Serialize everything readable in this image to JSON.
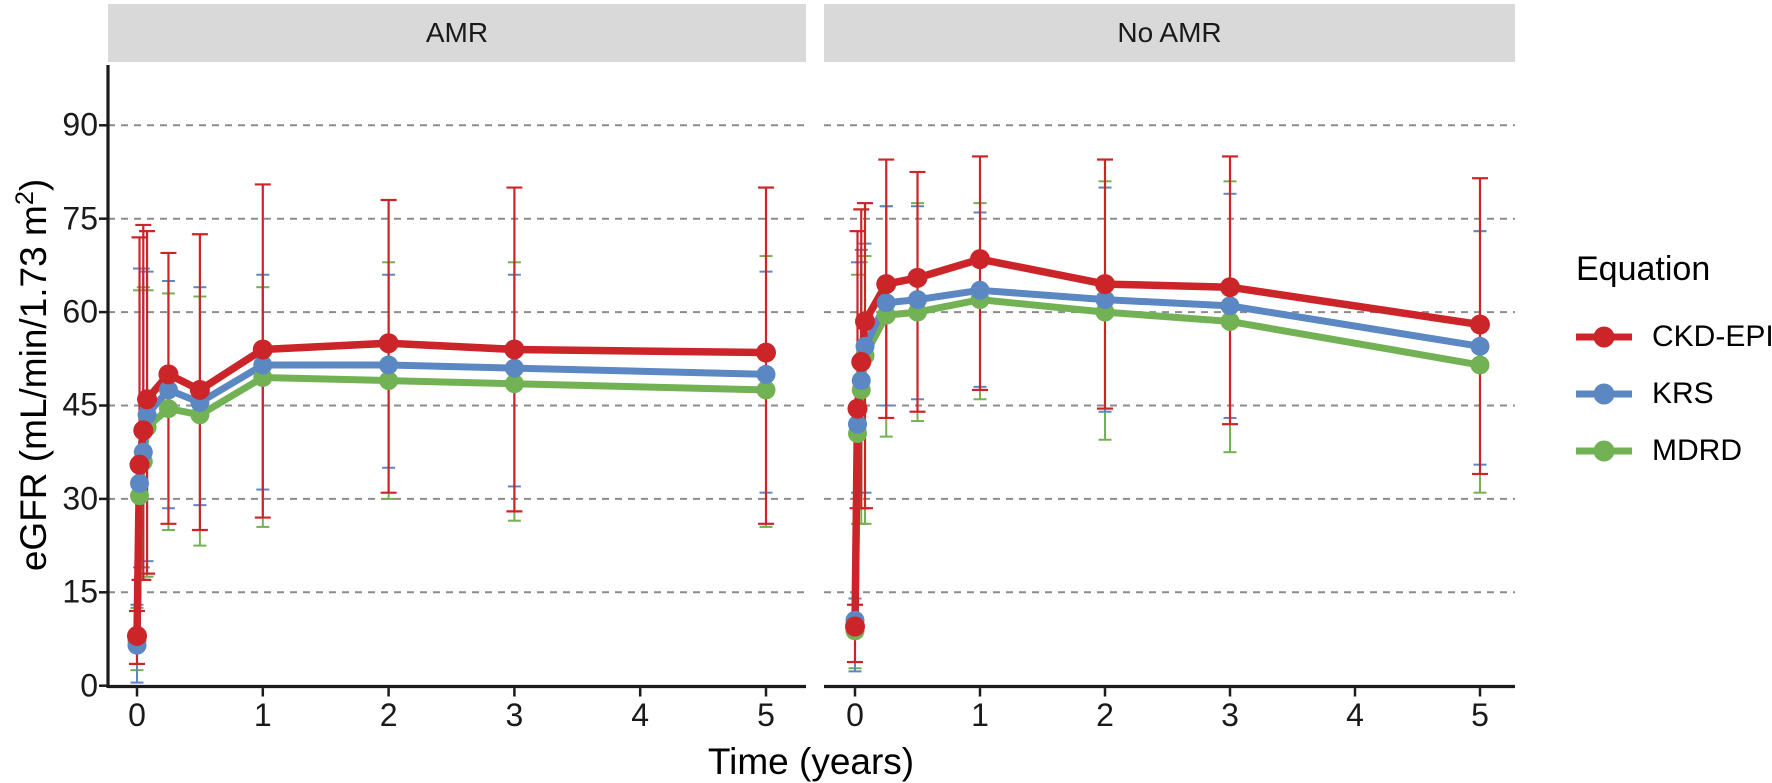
{
  "strips": {
    "left_label": "AMR",
    "right_label": "No AMR"
  },
  "legend": {
    "title": "Equation",
    "entries": [
      {
        "label": "CKD-EPI",
        "color": "#cc2529"
      },
      {
        "label": "KRS",
        "color": "#5b87c3"
      },
      {
        "label": "MDRD",
        "color": "#72b254"
      }
    ]
  },
  "colors": {
    "strip_bg": "#d9d9d9",
    "gridline": "#8c8c8c",
    "axis": "#1a1a1a",
    "background": "#ffffff"
  },
  "chart_data": {
    "type": "line",
    "x_label": "Time (years)",
    "y_label": "eGFR (mL/min/1.73 m²)",
    "y_label_parts": {
      "pre": "eGFR (mL/min/1.73 m",
      "sup": "2",
      "post": ")"
    },
    "x": [
      0,
      0.02,
      0.05,
      0.08,
      0.25,
      0.5,
      1,
      2,
      3,
      5
    ],
    "x_ticks": [
      0,
      1,
      2,
      3,
      4,
      5
    ],
    "y_ticks": [
      0,
      15,
      30,
      45,
      60,
      75,
      90
    ],
    "gridlines_at": [
      15,
      30,
      45,
      60,
      75,
      90
    ],
    "ylim": [
      0,
      100
    ],
    "grid": "horizontal-dashed",
    "legend_position": "right",
    "error_bars": "asymmetric lo/hi per point",
    "facets": [
      {
        "label": "AMR",
        "series": [
          {
            "name": "MDRD",
            "color": "#72b254",
            "values": [
              7.2,
              30.5,
              36,
              41.5,
              44.5,
              43.5,
              49.5,
              49,
              48.5,
              47.5
            ],
            "lo": [
              2.5,
              17,
              17,
              17.5,
              25,
              22.5,
              25.5,
              30,
              26.5,
              25.5
            ],
            "hi": [
              12.5,
              63.5,
              64,
              63.5,
              63,
              62.5,
              64,
              68,
              68,
              69
            ]
          },
          {
            "name": "KRS",
            "color": "#5b87c3",
            "values": [
              6.5,
              32.5,
              37.5,
              43.5,
              47.5,
              45.5,
              51.5,
              51.5,
              51,
              50
            ],
            "lo": [
              0.5,
              19,
              19,
              20,
              28.5,
              29,
              31.5,
              35,
              32,
              31
            ],
            "hi": [
              13,
              67,
              67,
              66.5,
              65,
              64,
              66,
              66,
              66,
              66.5
            ]
          },
          {
            "name": "CKD-EPI",
            "color": "#cc2529",
            "values": [
              8,
              35.5,
              41,
              46,
              50,
              47.5,
              54,
              55,
              54,
              53.5
            ],
            "lo": [
              3.5,
              17,
              17,
              18,
              26,
              25,
              27,
              31,
              28,
              26
            ],
            "hi": [
              12,
              72,
              74,
              73,
              69.5,
              72.5,
              80.5,
              78,
              80,
              80
            ]
          }
        ]
      },
      {
        "label": "No AMR",
        "series": [
          {
            "name": "MDRD",
            "color": "#72b254",
            "values": [
              8.8,
              40.5,
              47.5,
              53,
              59.5,
              60,
              62,
              60,
              58.5,
              51.5
            ],
            "lo": [
              2.8,
              26,
              26,
              26,
              40,
              42.5,
              46,
              39.5,
              37.5,
              31
            ],
            "hi": [
              13,
              66,
              68,
              69,
              77,
              77.5,
              77.5,
              81,
              81,
              73
            ]
          },
          {
            "name": "KRS",
            "color": "#5b87c3",
            "values": [
              10.5,
              42,
              49,
              54.5,
              61.5,
              62,
              63.5,
              62,
              61,
              54.5
            ],
            "lo": [
              2.3,
              31,
              31,
              31,
              45,
              46,
              48,
              44,
              43,
              35.5
            ],
            "hi": [
              14,
              68,
              70,
              71,
              77,
              77,
              76,
              80,
              79,
              73
            ]
          },
          {
            "name": "CKD-EPI",
            "color": "#cc2529",
            "values": [
              9.5,
              44.5,
              52,
              58.5,
              64.5,
              65.5,
              68.5,
              64.5,
              64,
              58
            ],
            "lo": [
              3.8,
              28.5,
              28.5,
              28.5,
              43,
              44,
              47.5,
              44.5,
              42,
              34
            ],
            "hi": [
              13,
              73,
              76.5,
              77.5,
              84.5,
              82.5,
              85,
              84.5,
              85,
              81.5
            ]
          }
        ]
      }
    ]
  }
}
